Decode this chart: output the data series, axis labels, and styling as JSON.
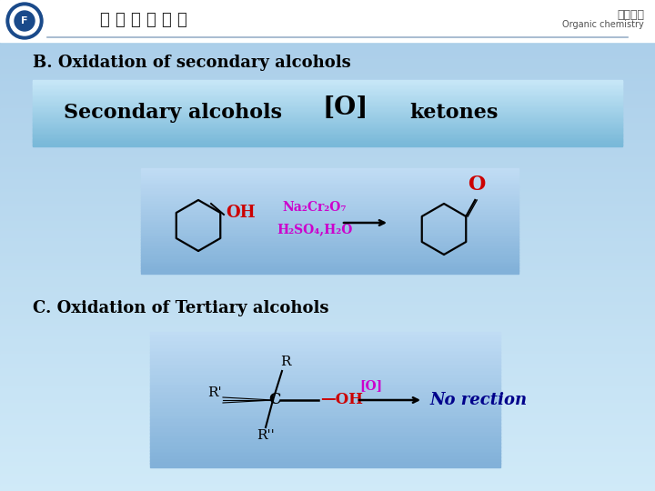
{
  "bg_grad_top": "#a8cce8",
  "bg_grad_bottom": "#d0eaf8",
  "header_bg": "#f0f8ff",
  "header_text_cn": "有机化学",
  "header_text_en": "Organic chemistry",
  "header_line_color": "#8ab0cc",
  "title_b": "B. Oxidation of secondary alcohols",
  "title_c": "C. Oxidation of Tertiary alcohols",
  "box1_color_top": "#c8e8f8",
  "box1_color_bot": "#7ab8d8",
  "box1_text_left": "Secondary alcohols",
  "box1_text_mid": "[O]",
  "box1_text_right": "ketones",
  "reaction1_OH": "OH",
  "reaction1_reagent1": "Na₂Cr₂O₇",
  "reaction1_reagent2": "H₂SO₄,H₂O",
  "reaction1_O": "O",
  "reaction2_result": "No rection",
  "text_color_black": "#000000",
  "text_color_red": "#cc0000",
  "text_color_magenta": "#cc00cc",
  "text_color_blue_italic": "#00008b",
  "text_color_gray": "#505050"
}
